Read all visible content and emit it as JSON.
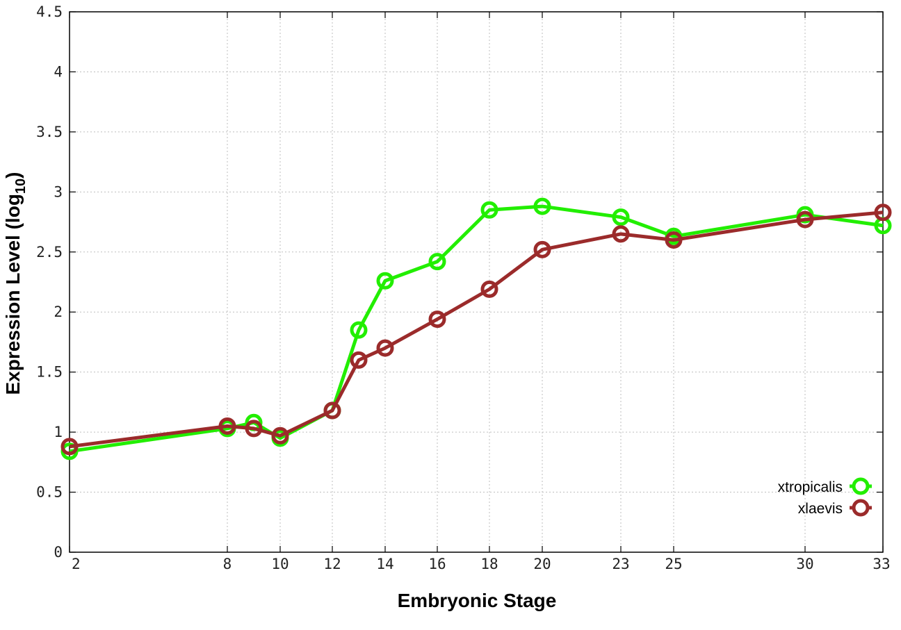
{
  "chart_data": {
    "type": "line",
    "xlabel": "Embryonic Stage",
    "ylabel_main": "Expression Level (log",
    "ylabel_sub": "10",
    "ylabel_close": ")",
    "x_ticks": [
      2,
      8,
      10,
      12,
      14,
      16,
      18,
      20,
      23,
      25,
      30,
      33
    ],
    "x_tick_labels": [
      "2",
      "8",
      "10",
      "12",
      "14",
      "16",
      "18",
      "20",
      "23",
      "25",
      "30",
      "33"
    ],
    "y_ticks": [
      0,
      0.5,
      1,
      1.5,
      2,
      2.5,
      3,
      3.5,
      4,
      4.5
    ],
    "y_tick_labels": [
      "0",
      "0.5",
      "1",
      "1.5",
      "2",
      "2.5",
      "3",
      "3.5",
      "4",
      "4.5"
    ],
    "ylim": [
      0,
      4.5
    ],
    "grid": true,
    "legend_position": "bottom-right",
    "series": [
      {
        "name": "xtropicalis",
        "color": "#22ee00",
        "points": [
          [
            "2",
            0.84
          ],
          [
            "8",
            1.03
          ],
          [
            "9",
            1.08
          ],
          [
            "10",
            0.95
          ],
          [
            "12",
            1.18
          ],
          [
            "13",
            1.85
          ],
          [
            "14",
            2.26
          ],
          [
            "16",
            2.42
          ],
          [
            "18",
            2.85
          ],
          [
            "20",
            2.88
          ],
          [
            "23",
            2.79
          ],
          [
            "25",
            2.63
          ],
          [
            "30",
            2.81
          ],
          [
            "33",
            2.72
          ]
        ]
      },
      {
        "name": "xlaevis",
        "color": "#9b2b2b",
        "points": [
          [
            "2",
            0.88
          ],
          [
            "8",
            1.05
          ],
          [
            "9",
            1.03
          ],
          [
            "10",
            0.97
          ],
          [
            "12",
            1.18
          ],
          [
            "13",
            1.6
          ],
          [
            "14",
            1.7
          ],
          [
            "16",
            1.94
          ],
          [
            "18",
            2.19
          ],
          [
            "20",
            2.52
          ],
          [
            "23",
            2.65
          ],
          [
            "25",
            2.6
          ],
          [
            "30",
            2.77
          ],
          [
            "33",
            2.83
          ]
        ]
      }
    ]
  }
}
